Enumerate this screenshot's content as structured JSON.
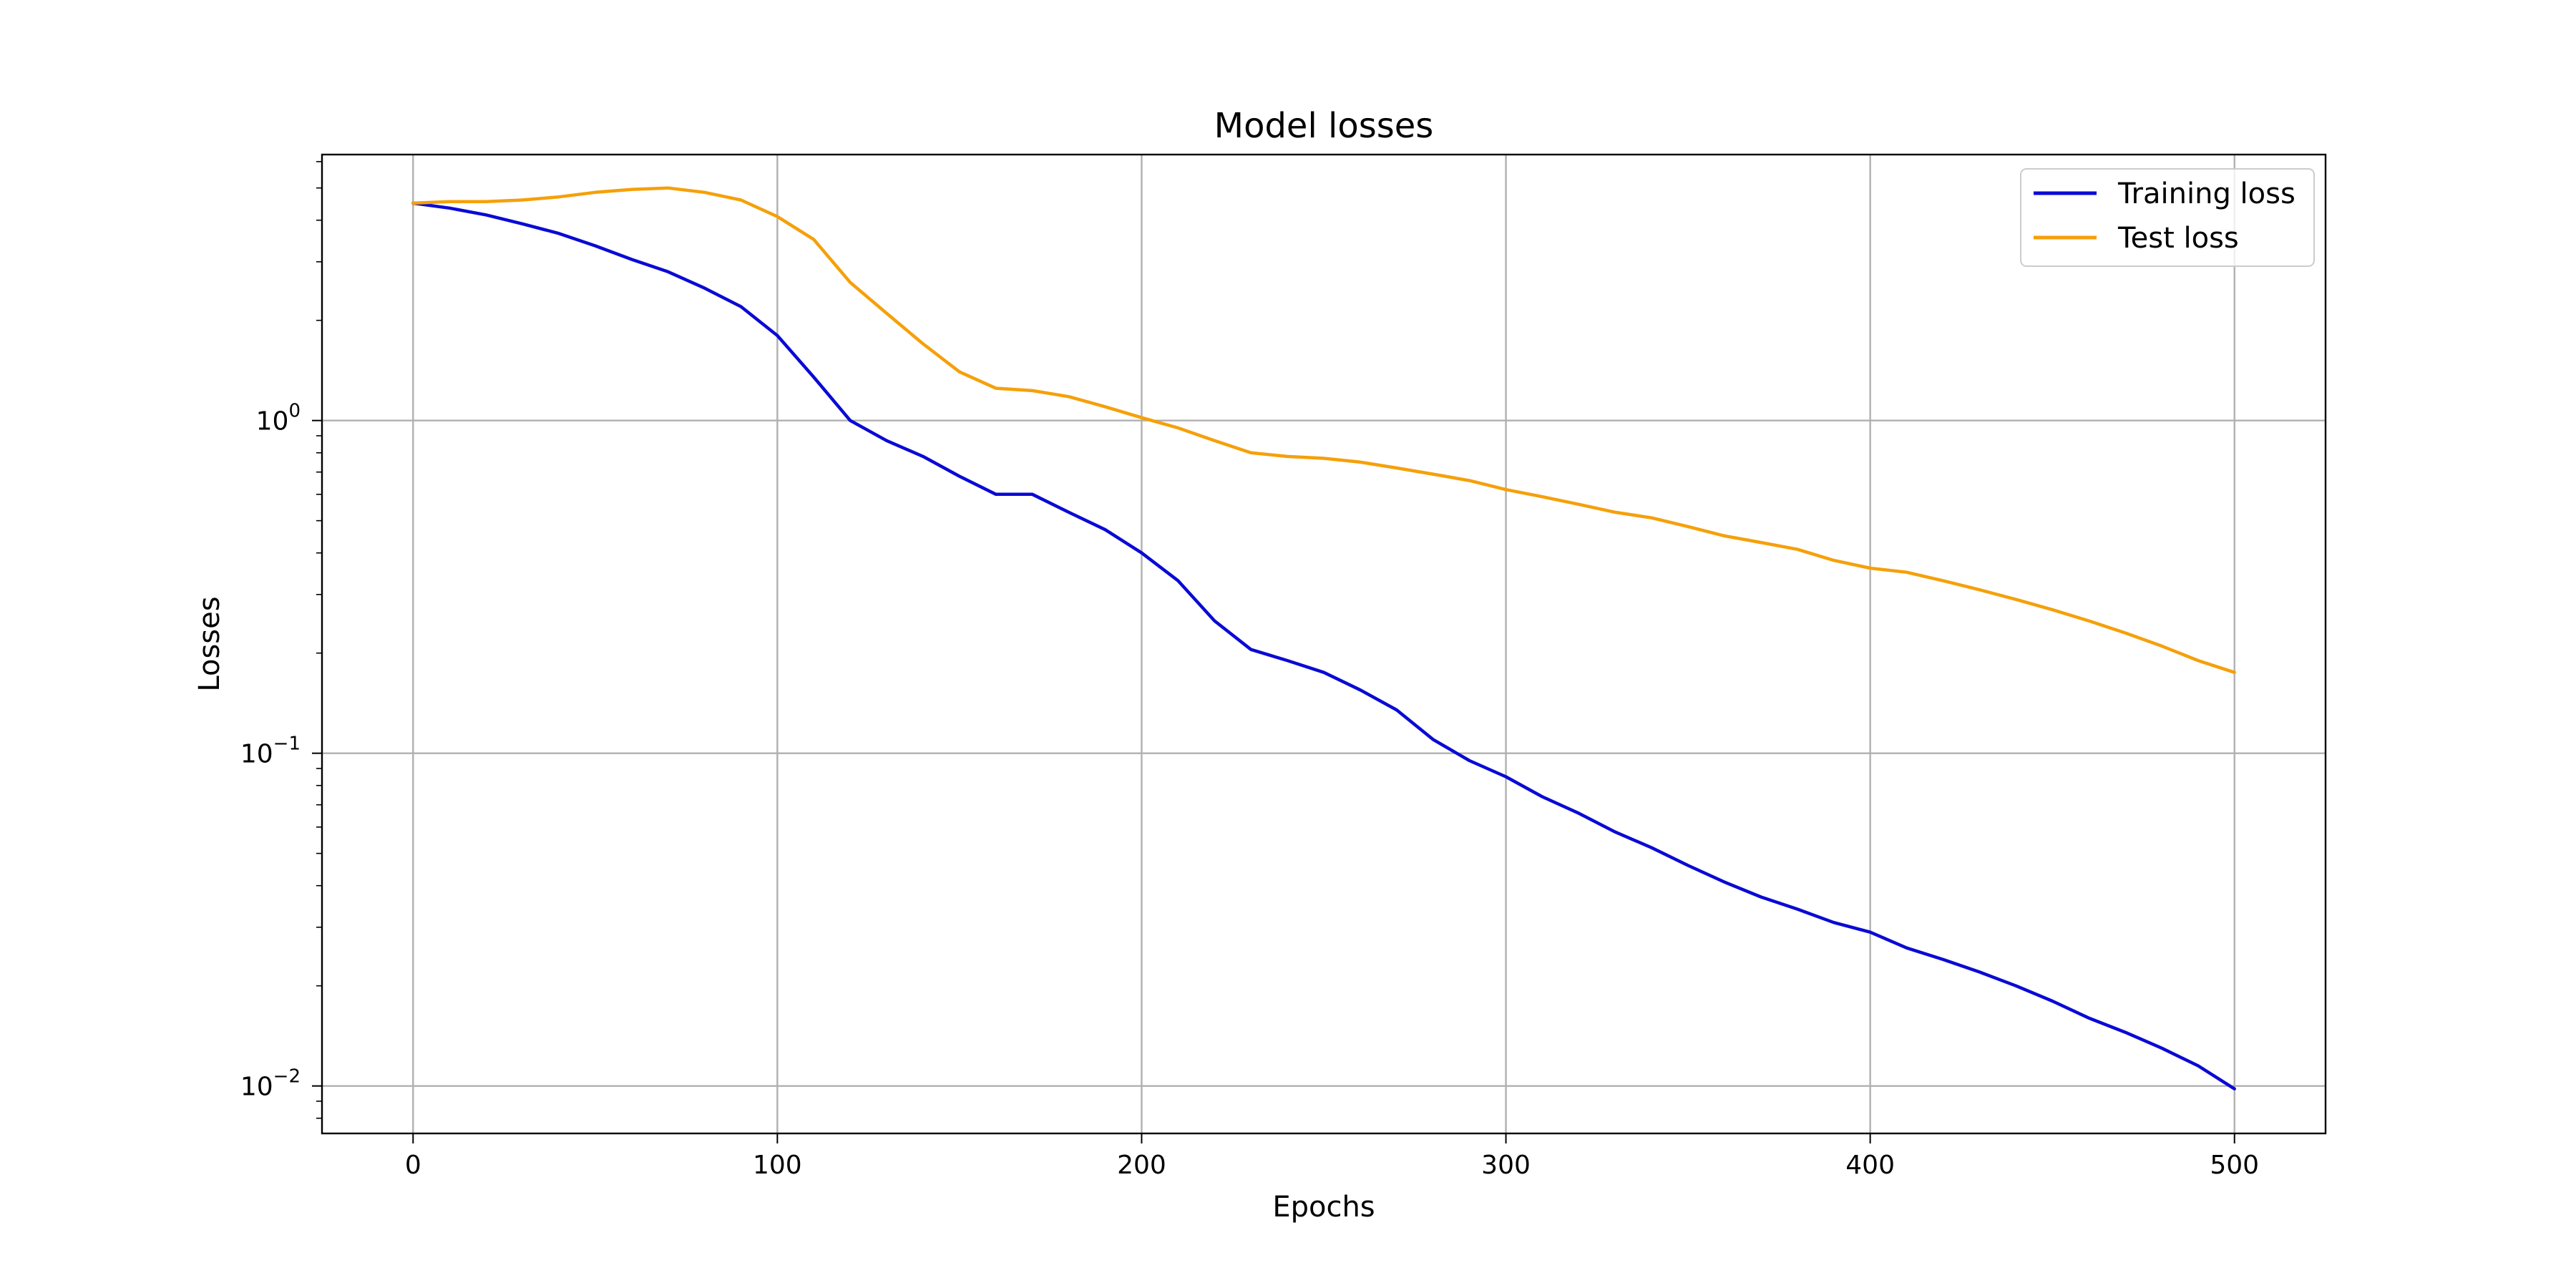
{
  "chart_data": {
    "type": "line",
    "title": "Model losses",
    "xlabel": "Epochs",
    "ylabel": "Losses",
    "xlim": [
      -25,
      525
    ],
    "ylim": [
      0.0072,
      6.3
    ],
    "yscale": "log",
    "grid": true,
    "legend_position": "top-right",
    "xticks": [
      {
        "value": 0,
        "label": "0"
      },
      {
        "value": 100,
        "label": "100"
      },
      {
        "value": 200,
        "label": "200"
      },
      {
        "value": 300,
        "label": "300"
      },
      {
        "value": 400,
        "label": "400"
      },
      {
        "value": 500,
        "label": "500"
      }
    ],
    "yticks": [
      {
        "value": 1,
        "base": "10",
        "exp": "0"
      },
      {
        "value": 0.1,
        "base": "10",
        "exp": "−1"
      },
      {
        "value": 0.01,
        "base": "10",
        "exp": "−2"
      }
    ],
    "x": [
      0,
      10,
      20,
      30,
      40,
      50,
      60,
      70,
      80,
      90,
      100,
      110,
      120,
      130,
      140,
      150,
      160,
      170,
      180,
      190,
      200,
      210,
      220,
      230,
      240,
      250,
      260,
      270,
      280,
      290,
      300,
      310,
      320,
      330,
      340,
      350,
      360,
      370,
      380,
      390,
      400,
      410,
      420,
      430,
      440,
      450,
      460,
      470,
      480,
      490,
      500
    ],
    "series": [
      {
        "name": "Training loss",
        "color": "#0a0ad4",
        "values": [
          4.5,
          4.35,
          4.15,
          3.9,
          3.65,
          3.35,
          3.05,
          2.8,
          2.5,
          2.2,
          1.8,
          1.35,
          1.0,
          0.87,
          0.78,
          0.68,
          0.6,
          0.6,
          0.53,
          0.47,
          0.4,
          0.33,
          0.25,
          0.205,
          0.19,
          0.175,
          0.155,
          0.135,
          0.11,
          0.095,
          0.085,
          0.074,
          0.066,
          0.058,
          0.052,
          0.046,
          0.041,
          0.037,
          0.034,
          0.031,
          0.029,
          0.026,
          0.024,
          0.022,
          0.02,
          0.018,
          0.016,
          0.0145,
          0.013,
          0.0115,
          0.0098
        ]
      },
      {
        "name": "Test loss",
        "color": "#f5a00a",
        "values": [
          4.5,
          4.55,
          4.55,
          4.6,
          4.7,
          4.85,
          4.95,
          5.0,
          4.85,
          4.6,
          4.1,
          3.5,
          2.6,
          2.1,
          1.7,
          1.4,
          1.25,
          1.23,
          1.18,
          1.1,
          1.02,
          0.95,
          0.87,
          0.8,
          0.78,
          0.77,
          0.75,
          0.72,
          0.69,
          0.66,
          0.62,
          0.59,
          0.56,
          0.53,
          0.51,
          0.48,
          0.45,
          0.43,
          0.41,
          0.38,
          0.36,
          0.35,
          0.33,
          0.31,
          0.29,
          0.27,
          0.25,
          0.23,
          0.21,
          0.19,
          0.175
        ]
      }
    ]
  }
}
